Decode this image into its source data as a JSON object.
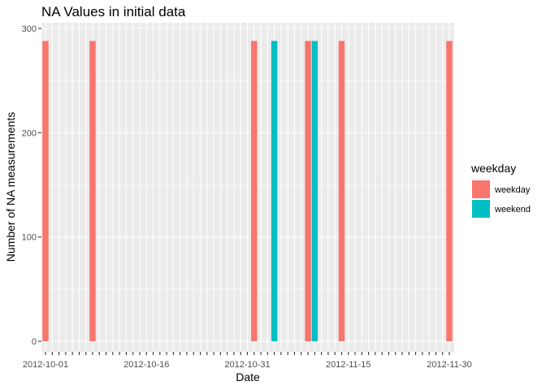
{
  "chart_data": {
    "type": "bar",
    "title": "NA Values in initial data",
    "xlabel": "Date",
    "ylabel": "Number of NA measurements",
    "x_range": [
      "2012-10-01",
      "2012-11-30"
    ],
    "x_ticks": [
      "2012-10-01",
      "2012-10-16",
      "2012-10-31",
      "2012-11-15",
      "2012-11-30"
    ],
    "ylim": [
      0,
      300
    ],
    "y_ticks": [
      0,
      100,
      200,
      300
    ],
    "grid": true,
    "legend": {
      "title": "weekday",
      "placement": "right",
      "entries": [
        {
          "label": "weekday",
          "color": "#F8766D"
        },
        {
          "label": "weekend",
          "color": "#00BFC4"
        }
      ]
    },
    "bars": [
      {
        "date": "2012-10-01",
        "value": 288,
        "group": "weekday"
      },
      {
        "date": "2012-10-08",
        "value": 288,
        "group": "weekday"
      },
      {
        "date": "2012-11-01",
        "value": 288,
        "group": "weekday"
      },
      {
        "date": "2012-11-04",
        "value": 288,
        "group": "weekend"
      },
      {
        "date": "2012-11-09",
        "value": 288,
        "group": "weekday"
      },
      {
        "date": "2012-11-10",
        "value": 288,
        "group": "weekend"
      },
      {
        "date": "2012-11-14",
        "value": 288,
        "group": "weekday"
      },
      {
        "date": "2012-11-30",
        "value": 288,
        "group": "weekday"
      }
    ],
    "colors": {
      "weekday": "#F8766D",
      "weekend": "#00BFC4",
      "panel": "#EBEBEB",
      "grid": "#FFFFFF"
    }
  }
}
